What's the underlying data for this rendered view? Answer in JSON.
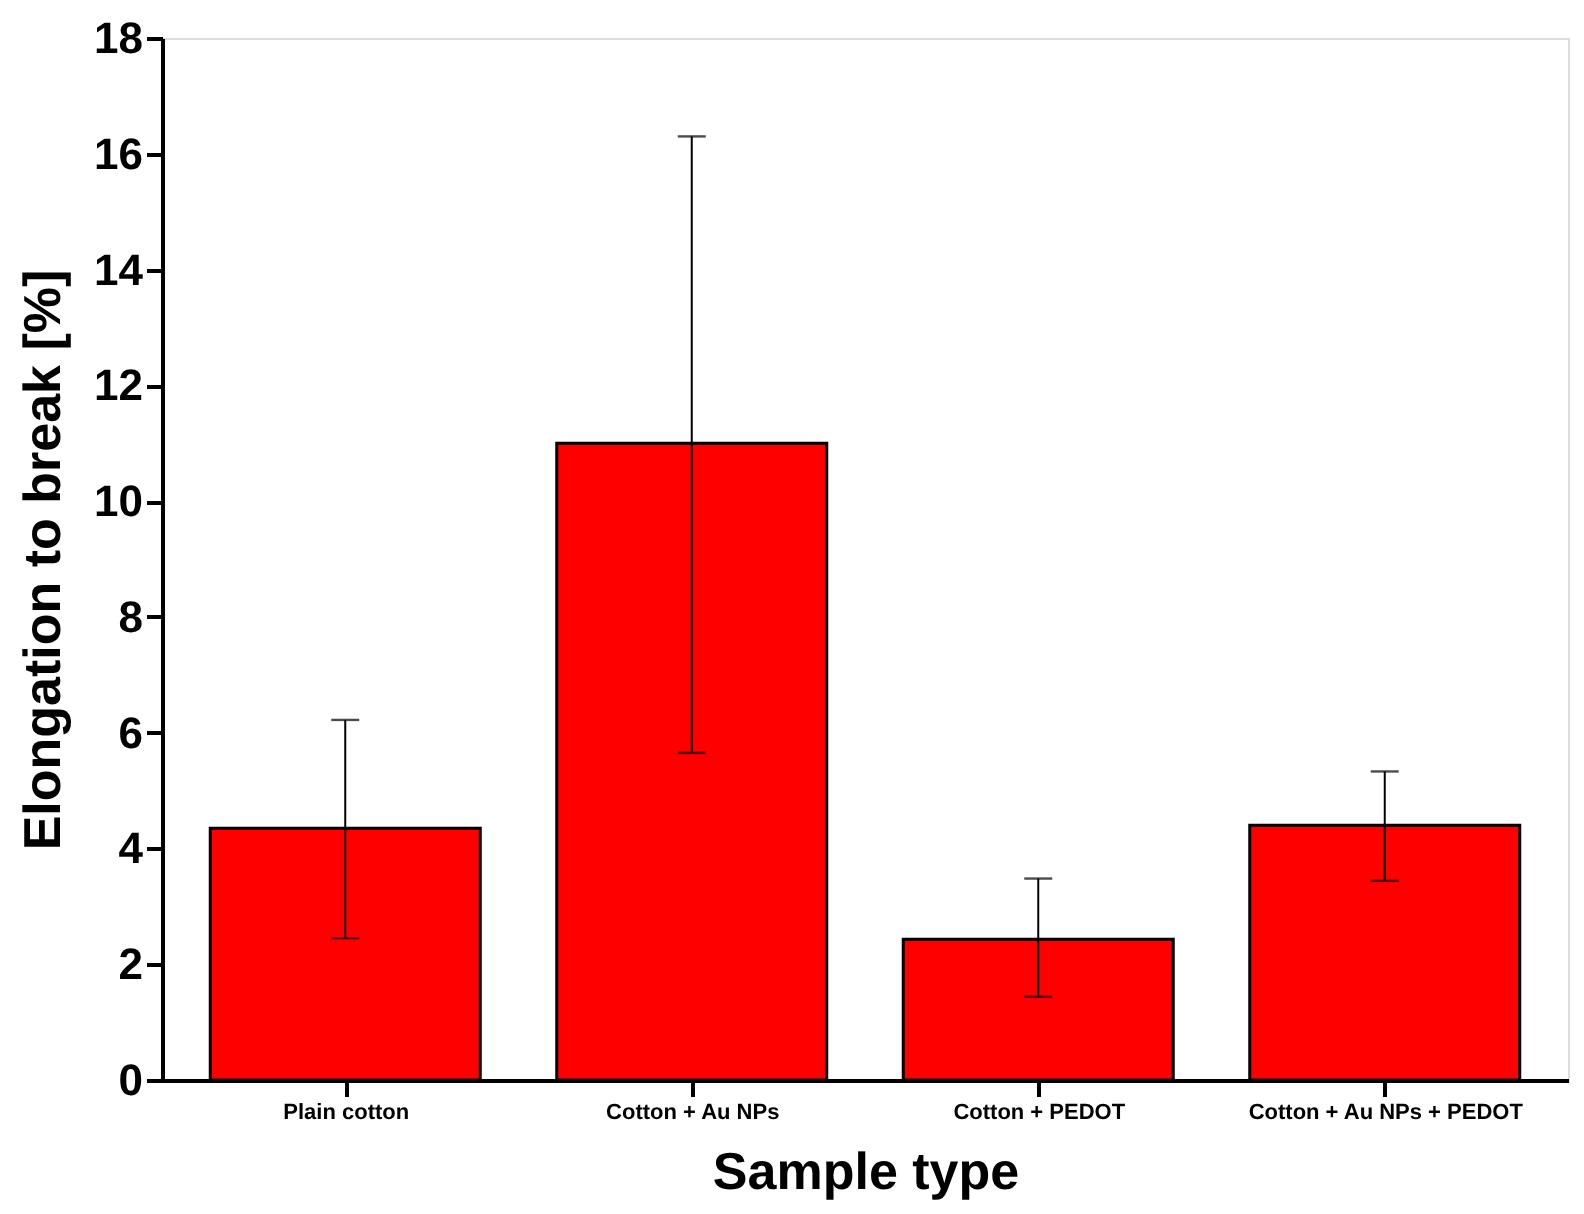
{
  "chart_data": {
    "type": "bar",
    "xlabel": "Sample type",
    "ylabel": "Elongation to break [%]",
    "categories": [
      "Plain cotton",
      "Cotton + Au NPs",
      "Cotton + PEDOT",
      "Cotton + Au NPs + PEDOT"
    ],
    "values": [
      4.35,
      11.0,
      2.43,
      4.4
    ],
    "errors": [
      [
        2.45,
        6.22
      ],
      [
        5.65,
        16.3
      ],
      [
        1.44,
        3.48
      ],
      [
        3.44,
        5.33
      ]
    ],
    "color": "#ff0000",
    "ylim": [
      0,
      18
    ],
    "yticks": [
      0,
      2,
      4,
      6,
      8,
      10,
      12,
      14,
      16,
      18
    ],
    "grid": false
  }
}
